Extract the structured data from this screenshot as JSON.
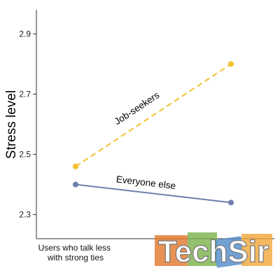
{
  "chart_data": {
    "type": "line",
    "ylabel": "Stress level",
    "xlabel": "",
    "ylim": [
      2.22,
      2.98
    ],
    "yticks": [
      2.3,
      2.5,
      2.7,
      2.9
    ],
    "ytick_labels": [
      "2.3",
      "2.5",
      "2.7",
      "2.9"
    ],
    "categories": [
      "Users who talk less\nwith strong ties",
      ""
    ],
    "grid": false,
    "legend": "none",
    "series": [
      {
        "name": "Job-seekers",
        "values": [
          2.46,
          2.8
        ],
        "color": "#f2c12e",
        "style": "dashed"
      },
      {
        "name": "Everyone else",
        "values": [
          2.4,
          2.34
        ],
        "color": "#6d7fad",
        "style": "solid"
      }
    ]
  },
  "watermark": {
    "text": "TechSir",
    "colors": [
      "#e2772b",
      "#7bb04a",
      "#4f8ac9",
      "#f1a63a"
    ]
  }
}
